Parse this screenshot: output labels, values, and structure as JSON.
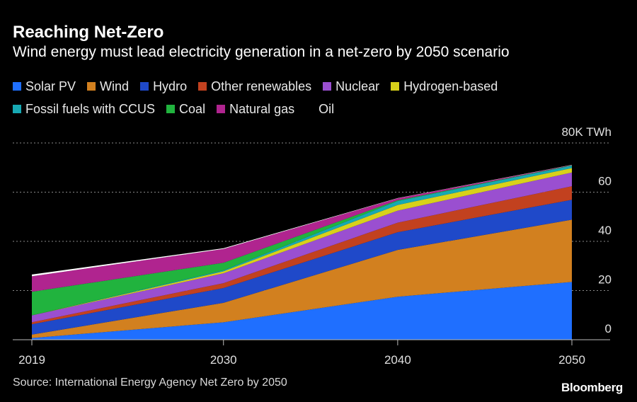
{
  "title": "Reaching Net-Zero",
  "subtitle": "Wind energy must lead electricity generation in a net-zero by 2050 scenario",
  "source": "Source: International Energy Agency Net Zero by 2050",
  "brand": "Bloomberg",
  "legend_rows": [
    [
      "Solar PV",
      "Wind",
      "Hydro",
      "Other renewables",
      "Nuclear",
      "Hydrogen-based"
    ],
    [
      "Fossil fuels with CCUS",
      "Coal",
      "Natural gas",
      "Oil"
    ]
  ],
  "chart_data": {
    "type": "area",
    "stacked": true,
    "x": [
      2019,
      2030,
      2040,
      2050
    ],
    "x_tick_labels": [
      "2019",
      "2030",
      "2040",
      "2050"
    ],
    "y_tick_labels": [
      "0",
      "20",
      "40",
      "60",
      "80K TWh"
    ],
    "y_ticks": [
      0,
      20,
      40,
      60,
      80
    ],
    "ylim": [
      0,
      80
    ],
    "unit": "K TWh",
    "grid": true,
    "legend_position": "top",
    "series": [
      {
        "name": "Solar PV",
        "color": "#1f6fff",
        "values": [
          0.7,
          7.1,
          17.5,
          23.5
        ]
      },
      {
        "name": "Wind",
        "color": "#d2801f",
        "values": [
          1.4,
          7.9,
          19.0,
          25.3
        ]
      },
      {
        "name": "Hydro",
        "color": "#1f49c9",
        "values": [
          4.2,
          6.0,
          7.2,
          8.1
        ]
      },
      {
        "name": "Other renewables",
        "color": "#c2411f",
        "values": [
          0.8,
          2.0,
          3.9,
          5.5
        ]
      },
      {
        "name": "Nuclear",
        "color": "#9a4fd0",
        "values": [
          2.8,
          4.0,
          4.9,
          5.6
        ]
      },
      {
        "name": "Hydrogen-based",
        "color": "#d8d11a",
        "values": [
          0.0,
          0.8,
          2.3,
          1.8
        ]
      },
      {
        "name": "Fossil fuels with CCUS",
        "color": "#17a9b3",
        "values": [
          0.0,
          0.4,
          1.6,
          1.0
        ]
      },
      {
        "name": "Coal",
        "color": "#21b33e",
        "values": [
          9.6,
          3.1,
          0.3,
          0.1
        ]
      },
      {
        "name": "Natural gas",
        "color": "#b0248f",
        "values": [
          6.3,
          5.6,
          0.8,
          0.1
        ]
      },
      {
        "name": "Oil",
        "color": "#ffffff",
        "values": [
          0.7,
          0.3,
          0.1,
          0.1
        ]
      }
    ]
  }
}
